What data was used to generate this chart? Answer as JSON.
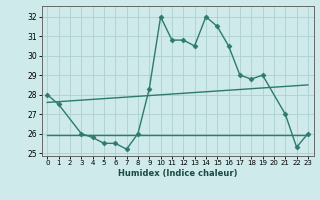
{
  "line1_x": [
    0,
    1,
    3,
    4,
    5,
    6,
    7,
    8,
    9,
    10,
    11,
    12,
    13,
    14,
    15,
    16,
    17,
    18,
    19,
    21,
    22,
    23
  ],
  "line1_y": [
    28.0,
    27.5,
    26.0,
    25.8,
    25.5,
    25.5,
    25.2,
    26.0,
    28.3,
    32.0,
    30.8,
    30.8,
    30.5,
    32.0,
    31.5,
    30.5,
    29.0,
    28.8,
    29.0,
    27.0,
    25.3,
    26.0
  ],
  "line2_x": [
    0,
    23
  ],
  "line2_y": [
    27.6,
    28.5
  ],
  "line3_x": [
    0,
    21,
    23
  ],
  "line3_y": [
    25.95,
    25.95,
    25.95
  ],
  "color": "#2d7a6e",
  "bg_color": "#ceeaea",
  "grid_color": "#aed0d0",
  "xlabel": "Humidex (Indice chaleur)",
  "xlim": [
    -0.5,
    23.5
  ],
  "ylim": [
    24.85,
    32.55
  ],
  "yticks": [
    25,
    26,
    27,
    28,
    29,
    30,
    31,
    32
  ],
  "xticks": [
    0,
    1,
    2,
    3,
    4,
    5,
    6,
    7,
    8,
    9,
    10,
    11,
    12,
    13,
    14,
    15,
    16,
    17,
    18,
    19,
    20,
    21,
    22,
    23
  ],
  "xtick_labels": [
    "0",
    "1",
    "2",
    "3",
    "4",
    "5",
    "6",
    "7",
    "8",
    "9",
    "10",
    "11",
    "12",
    "13",
    "14",
    "15",
    "16",
    "17",
    "18",
    "19",
    "20",
    "21",
    "22",
    "23"
  ],
  "marker": "D",
  "markersize": 2.5,
  "linewidth": 1.0
}
